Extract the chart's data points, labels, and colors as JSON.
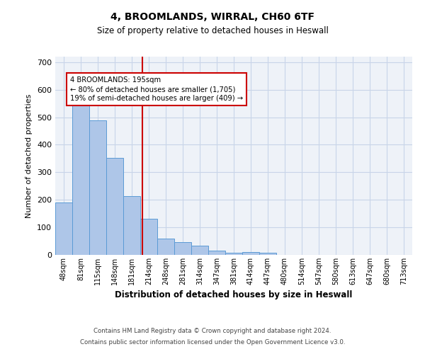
{
  "title1": "4, BROOMLANDS, WIRRAL, CH60 6TF",
  "title2": "Size of property relative to detached houses in Heswall",
  "xlabel": "Distribution of detached houses by size in Heswall",
  "ylabel": "Number of detached properties",
  "categories": [
    "48sqm",
    "81sqm",
    "115sqm",
    "148sqm",
    "181sqm",
    "214sqm",
    "248sqm",
    "281sqm",
    "314sqm",
    "347sqm",
    "381sqm",
    "414sqm",
    "447sqm",
    "480sqm",
    "514sqm",
    "547sqm",
    "580sqm",
    "613sqm",
    "647sqm",
    "680sqm",
    "713sqm"
  ],
  "values": [
    190,
    575,
    488,
    353,
    213,
    130,
    58,
    46,
    33,
    15,
    8,
    10,
    7,
    0,
    0,
    0,
    0,
    0,
    0,
    0,
    0
  ],
  "bar_color": "#aec6e8",
  "bar_edge_color": "#5b9bd5",
  "grid_color": "#c8d4e8",
  "background_color": "#eef2f8",
  "vline_x": 4.62,
  "vline_color": "#cc0000",
  "annotation_line1": "4 BROOMLANDS: 195sqm",
  "annotation_line2": "← 80% of detached houses are smaller (1,705)",
  "annotation_line3": "19% of semi-detached houses are larger (409) →",
  "ylim": [
    0,
    720
  ],
  "yticks": [
    0,
    100,
    200,
    300,
    400,
    500,
    600,
    700
  ],
  "footer1": "Contains HM Land Registry data © Crown copyright and database right 2024.",
  "footer2": "Contains public sector information licensed under the Open Government Licence v3.0."
}
